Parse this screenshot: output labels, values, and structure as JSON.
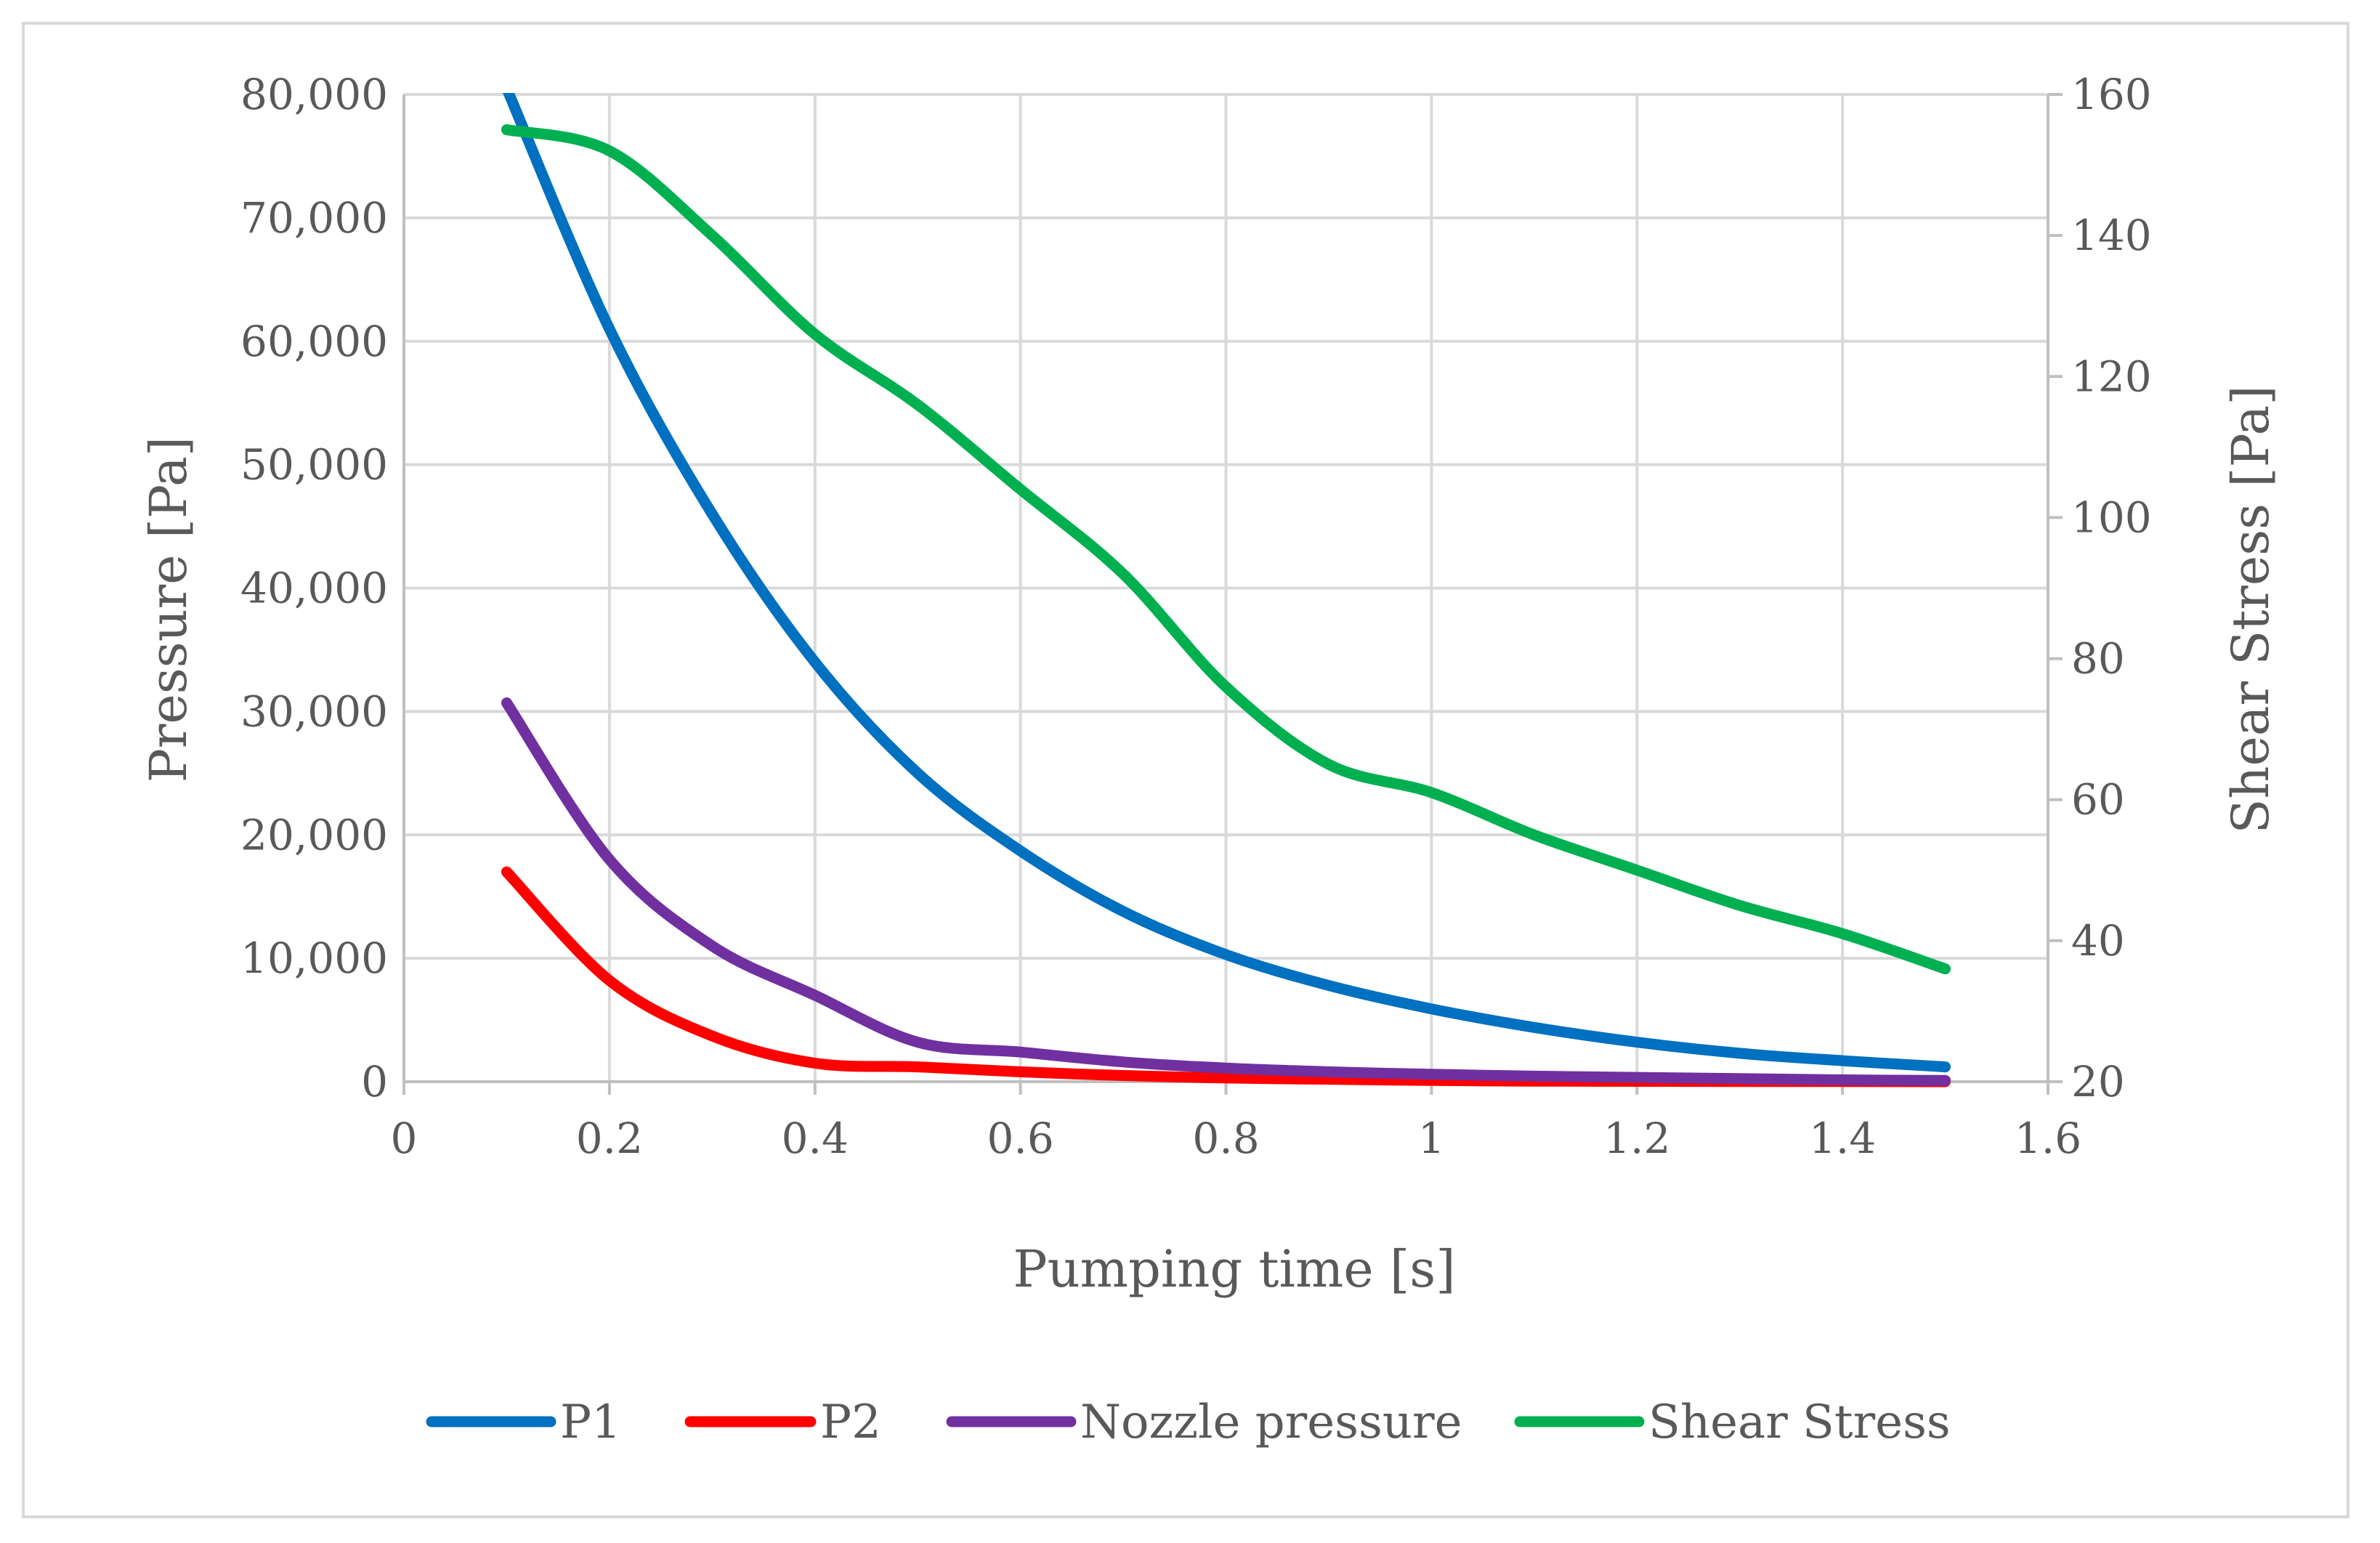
{
  "chart_data": {
    "type": "line",
    "title": "",
    "xlabel": "Pumping time [s]",
    "ylabel": "Pressure [Pa]",
    "y2label": "Shear Stress [Pa]",
    "xlim": [
      0,
      1.6
    ],
    "ylim": [
      0,
      80000
    ],
    "y2lim": [
      20,
      160
    ],
    "grid": true,
    "legend": "bottom",
    "x_ticks": [
      "0",
      "0.2",
      "0.4",
      "0.6",
      "0.8",
      "1",
      "1.2",
      "1.4",
      "1.6"
    ],
    "y_ticks": [
      "0",
      "10,000",
      "20,000",
      "30,000",
      "40,000",
      "50,000",
      "60,000",
      "70,000",
      "80,000"
    ],
    "y2_ticks": [
      "20",
      "40",
      "60",
      "80",
      "100",
      "120",
      "140",
      "160"
    ],
    "series": [
      {
        "name": "P1",
        "color": "#0070c0",
        "axis": "left",
        "x": [
          0.1,
          0.2,
          0.3,
          0.4,
          0.5,
          0.6,
          0.7,
          0.8,
          0.9,
          1.0,
          1.1,
          1.2,
          1.3,
          1.4,
          1.5
        ],
        "values": [
          80500,
          61000,
          46000,
          34000,
          25000,
          18700,
          13800,
          10300,
          7800,
          5900,
          4400,
          3200,
          2300,
          1700,
          1200
        ]
      },
      {
        "name": "P2",
        "color": "#ff0000",
        "axis": "left",
        "x": [
          0.1,
          0.2,
          0.3,
          0.4,
          0.5,
          0.6,
          0.7,
          0.8,
          0.9,
          1.0,
          1.1,
          1.2,
          1.3,
          1.4,
          1.5
        ],
        "values": [
          17000,
          8200,
          3700,
          1500,
          1200,
          800,
          500,
          300,
          200,
          100,
          50,
          30,
          20,
          10,
          0
        ]
      },
      {
        "name": "Nozzle pressure",
        "color": "#7030a0",
        "axis": "left",
        "x": [
          0.1,
          0.2,
          0.3,
          0.4,
          0.5,
          0.6,
          0.7,
          0.8,
          0.9,
          1.0,
          1.1,
          1.2,
          1.3,
          1.4,
          1.5
        ],
        "values": [
          30700,
          18000,
          11000,
          7000,
          3200,
          2400,
          1600,
          1100,
          800,
          600,
          450,
          350,
          250,
          150,
          100
        ]
      },
      {
        "name": "Shear Stress",
        "color": "#00b050",
        "axis": "right",
        "x": [
          0.1,
          0.2,
          0.3,
          0.4,
          0.5,
          0.6,
          0.7,
          0.8,
          0.9,
          1.0,
          1.1,
          1.2,
          1.3,
          1.4,
          1.5
        ],
        "values": [
          155,
          152,
          140,
          126,
          116,
          104,
          92,
          76,
          65,
          61,
          55,
          50,
          45,
          41,
          36
        ]
      }
    ]
  }
}
